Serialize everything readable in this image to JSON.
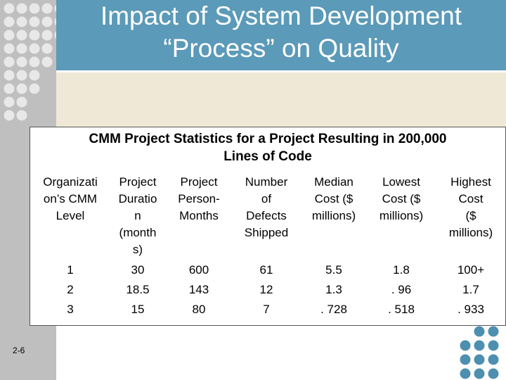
{
  "slide": {
    "title_line1": "Impact of System Development",
    "title_line2": "“Process” on Quality",
    "number": "2-6"
  },
  "table": {
    "caption_line1": "CMM Project Statistics for a Project Resulting in 200,000",
    "caption_line2": "Lines of Code",
    "headers": [
      [
        "Organizati",
        "on’s CMM",
        "Level"
      ],
      [
        "Project",
        "Duratio",
        "n",
        "(month",
        "s)"
      ],
      [
        "Project",
        "Person-",
        "Months"
      ],
      [
        "Number",
        "of",
        "Defects",
        "Shipped"
      ],
      [
        "Median",
        "Cost ($",
        "millions)"
      ],
      [
        "Lowest",
        "Cost ($",
        "millions)"
      ],
      [
        "Highest",
        "Cost",
        "($",
        "millions)"
      ]
    ],
    "rows": [
      [
        "1",
        "30",
        "600",
        "61",
        "5.5",
        "1.8",
        "100+"
      ],
      [
        "2",
        "18.5",
        "143",
        "12",
        "1.3",
        ". 96",
        "1.7"
      ],
      [
        "3",
        "15",
        "80",
        "7",
        ". 728",
        ". 518",
        ". 933"
      ]
    ]
  },
  "colors": {
    "title_band": "#5b9ab8",
    "strip": "#bfbfbf",
    "beige": "#efe8d6",
    "dot_light": "#e8e8e8",
    "dot_blue": "#4d8fb0"
  }
}
